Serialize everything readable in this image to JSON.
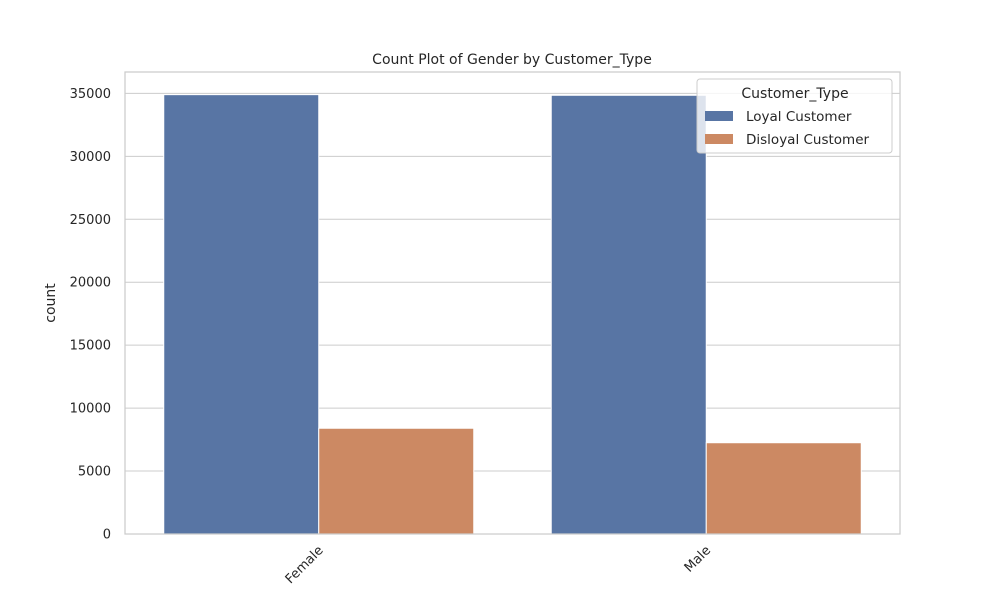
{
  "chart_data": {
    "type": "bar",
    "title": "Count Plot of Gender by Customer_Type",
    "xlabel": "",
    "ylabel": "count",
    "categories": [
      "Female",
      "Male"
    ],
    "series": [
      {
        "name": "Loyal Customer",
        "values": [
          34900,
          34850
        ],
        "color": "#5875a4"
      },
      {
        "name": "Disloyal Customer",
        "values": [
          8400,
          7250
        ],
        "color": "#cc8963"
      }
    ],
    "ylim": [
      0,
      36700
    ],
    "yticks": [
      0,
      5000,
      10000,
      15000,
      20000,
      25000,
      30000,
      35000
    ],
    "grid": true,
    "legend": {
      "title": "Customer_Type",
      "placement": "top-right"
    }
  }
}
